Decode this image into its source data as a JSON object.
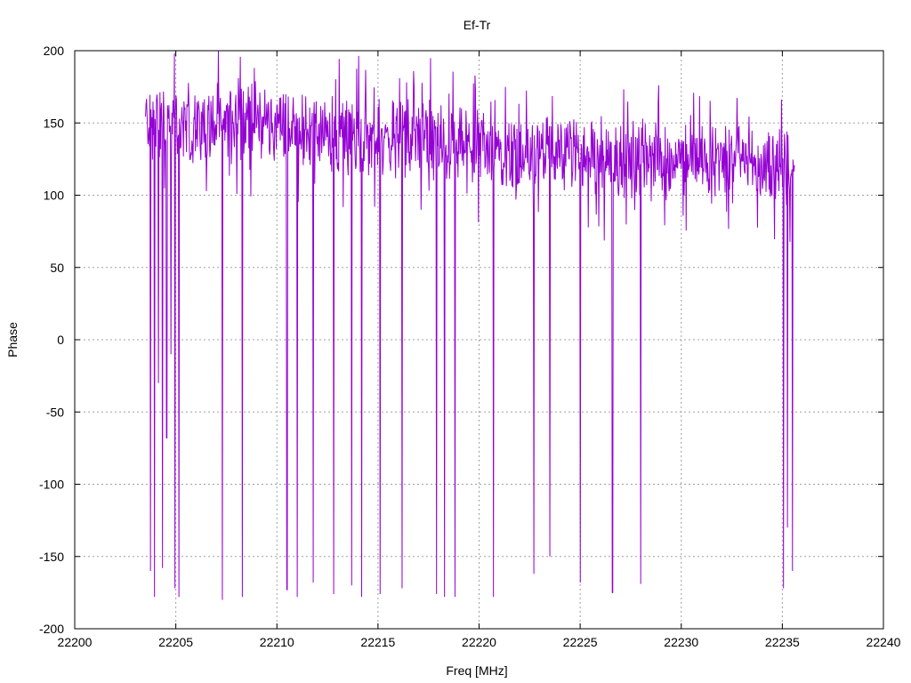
{
  "chart_data": {
    "type": "line",
    "title": "Ef-Tr",
    "xlabel": "Freq [MHz]",
    "ylabel": "Phase",
    "xlim": [
      22200,
      22240
    ],
    "ylim": [
      -200,
      200
    ],
    "xticks": [
      22200,
      22205,
      22210,
      22215,
      22220,
      22225,
      22230,
      22235,
      22240
    ],
    "yticks": [
      -200,
      -150,
      -100,
      -50,
      0,
      50,
      100,
      150,
      200
    ],
    "grid": true,
    "legend": "none",
    "series": [
      {
        "color": "#9400d3",
        "x_start": 22203.5,
        "x_end": 22235.6,
        "baseline": [
          [
            22203.5,
            152
          ],
          [
            22205.5,
            145
          ],
          [
            22207.0,
            150
          ],
          [
            22208.5,
            152
          ],
          [
            22210.0,
            148
          ],
          [
            22212.0,
            143
          ],
          [
            22214.0,
            140
          ],
          [
            22216.0,
            138
          ],
          [
            22218.0,
            135
          ],
          [
            22220.0,
            132
          ],
          [
            22222.0,
            130
          ],
          [
            22224.0,
            128
          ],
          [
            22226.0,
            127
          ],
          [
            22228.0,
            125
          ],
          [
            22230.0,
            124
          ],
          [
            22232.0,
            123
          ],
          [
            22234.0,
            122
          ],
          [
            22235.6,
            122
          ]
        ],
        "dips": [
          [
            22203.75,
            -160
          ],
          [
            22203.95,
            -178
          ],
          [
            22204.15,
            -30
          ],
          [
            22204.35,
            -158
          ],
          [
            22204.55,
            -68
          ],
          [
            22204.75,
            -10
          ],
          [
            22204.95,
            -172
          ],
          [
            22205.15,
            -178
          ],
          [
            22207.3,
            -180
          ],
          [
            22208.3,
            -178
          ],
          [
            22210.5,
            -173
          ],
          [
            22211.0,
            -178
          ],
          [
            22211.8,
            -168
          ],
          [
            22212.8,
            -176
          ],
          [
            22213.7,
            -170
          ],
          [
            22214.2,
            -178
          ],
          [
            22215.1,
            -176
          ],
          [
            22216.2,
            -172
          ],
          [
            22217.9,
            -176
          ],
          [
            22218.3,
            -178
          ],
          [
            22218.8,
            -178
          ],
          [
            22220.7,
            -178
          ],
          [
            22222.7,
            -162
          ],
          [
            22223.5,
            -150
          ],
          [
            22225.0,
            -168
          ],
          [
            22226.6,
            -175
          ],
          [
            22228.0,
            -169
          ],
          [
            22235.05,
            -172
          ],
          [
            22235.25,
            -130
          ],
          [
            22235.5,
            -160
          ]
        ]
      }
    ]
  }
}
